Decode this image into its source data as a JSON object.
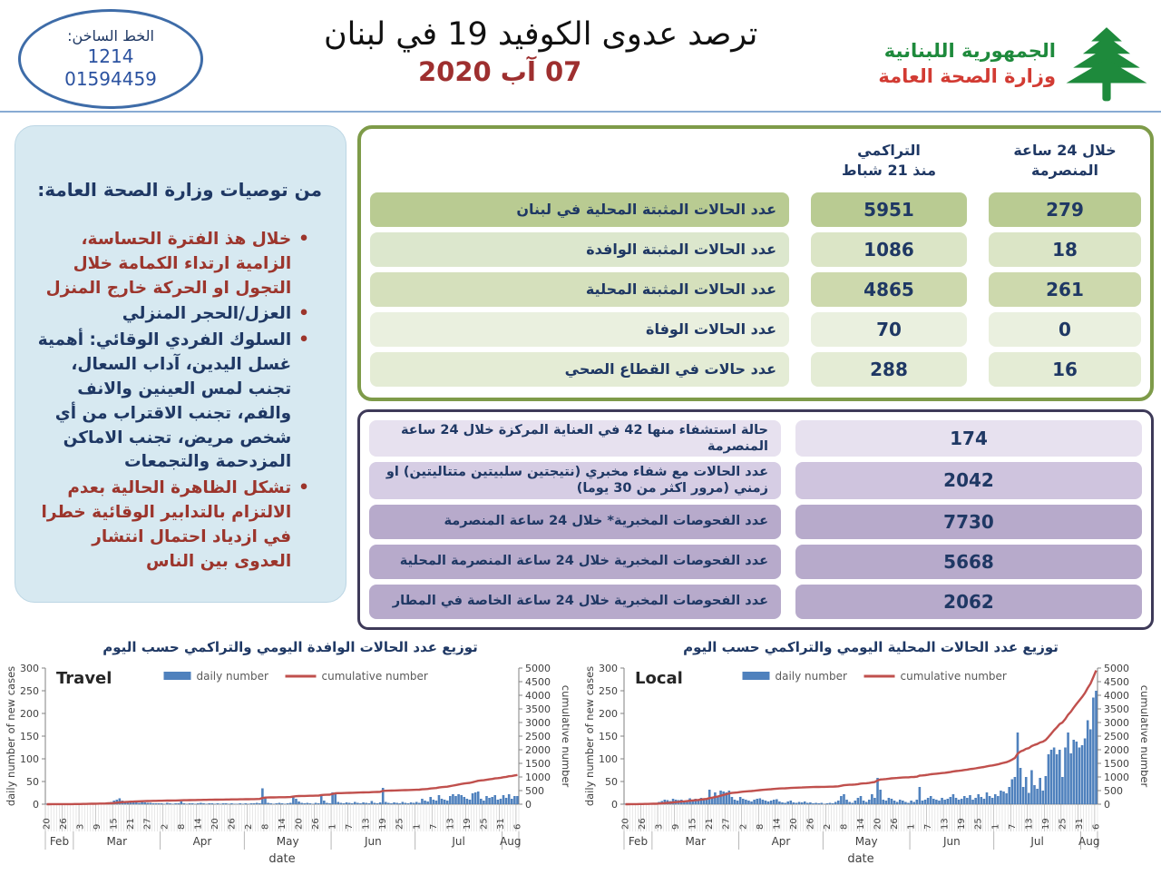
{
  "header": {
    "hotline": {
      "label": "الخط الساخن:",
      "number1": "1214",
      "number2": "01594459"
    },
    "title": "ترصد عدوى الكوفيد 19 في لبنان",
    "date": "07 آب 2020",
    "ministry": {
      "line1": "الجمهورية اللبنانية",
      "line2": "وزارة الصحة العامة"
    }
  },
  "recommendations": {
    "title": "من توصيات وزارة الصحة العامة:",
    "items": [
      {
        "text": "خلال هذ الفترة الحساسة، الزامية ارتداء الكمامة خلال التجول او الحركة خارج المنزل",
        "color": "#9C352C"
      },
      {
        "text": "العزل/الحجر المنزلي",
        "color": "#1F3864"
      },
      {
        "text": "السلوك الفردي الوقائي: أهمية غسل اليدين، آداب السعال، تجنب لمس العينين والانف والفم، تجنب الاقتراب من أي شخص مريض، تجنب الاماكن المزدحمة والتجمعات",
        "color": "#1F3864"
      },
      {
        "text": "تشكل الظاهرة الحالية بعدم الالتزام بالتدابير الوقائية خطرا في ازدياد احتمال انتشار العدوى بين الناس",
        "color": "#9C352C"
      }
    ]
  },
  "stats_table": {
    "col_cumulative": "التراكمي\nمنذ 21 شباط",
    "col_24h": "خلال 24 ساعة\nالمنصرمة",
    "rows": [
      {
        "label": "عدد الحالات المثبتة المحلية في لبنان",
        "cumulative": "5951",
        "last24h": "279",
        "label_bg": "#B9CB92",
        "value_bg": "#B9CB92"
      },
      {
        "label": "عدد الحالات المثبتة الوافدة",
        "cumulative": "1086",
        "last24h": "18",
        "label_bg": "#DCE7CD",
        "value_bg": "#DBE5C6"
      },
      {
        "label": "عدد الحالات المثبتة المحلية",
        "cumulative": "4865",
        "last24h": "261",
        "label_bg": "#D5E0BC",
        "value_bg": "#CDD9AD"
      },
      {
        "label": "عدد الحالات الوفاة",
        "cumulative": "70",
        "last24h": "0",
        "label_bg": "#EAF0DF",
        "value_bg": "#EAF0DF"
      },
      {
        "label": "عدد حالات في القطاع الصحي",
        "cumulative": "288",
        "last24h": "16",
        "label_bg": "#E4ECD5",
        "value_bg": "#E4ECD5"
      }
    ]
  },
  "lab_table": {
    "rows": [
      {
        "label": "حالة استشفاء منها 42 في العناية المركزة خلال 24 ساعة المنصرمة",
        "value": "174",
        "label_bg": "#E7E1EF",
        "value_bg": "#E7E1EF"
      },
      {
        "label": "عدد الحالات مع شفاء مخبري (نتيجتين سلبيتين متتاليتين) او زمني (مرور اكثر من 30 يوما)",
        "value": "2042",
        "label_bg": "#D6CDE4",
        "value_bg": "#CFC4DE"
      },
      {
        "label": "عدد الفحوصات المخبرية* خلال 24 ساعة المنصرمة",
        "value": "7730",
        "label_bg": "#B7AACB",
        "value_bg": "#B7AACB"
      },
      {
        "label": "عدد الفحوصات المخبرية خلال 24 ساعة المنصرمة المحلية",
        "value": "5668",
        "label_bg": "#B7AACB",
        "value_bg": "#B7AACB"
      },
      {
        "label": "عدد الفحوصات المخبرية خلال 24 ساعة الخاصة في المطار",
        "value": "2062",
        "label_bg": "#B7AACB",
        "value_bg": "#B7AACB"
      }
    ]
  },
  "charts_section": {
    "travel_title": "توزيع عدد الحالات الوافدة اليومي والتراكمي حسب اليوم",
    "local_title": "توزيع عدد الحالات المحلية اليومي والتراكمي حسب اليوم"
  },
  "chart_data": [
    {
      "type": "bar",
      "title": "Travel",
      "legend": [
        "daily number",
        "cumulative number"
      ],
      "xlabel": "date",
      "ylabel_left": "daily number of new cases",
      "ylabel_right": "cumulative number",
      "ylim_left": [
        0,
        300
      ],
      "ytick_left": 50,
      "ylim_right": [
        0,
        5000
      ],
      "ytick_right": 500,
      "bar_color": "#4F81BD",
      "line_color": "#C0504D",
      "line_is_cumulative_of_daily": true,
      "x_tick_labels": [
        "20",
        "26",
        "3",
        "9",
        "15",
        "21",
        "27",
        "2",
        "8",
        "14",
        "20",
        "26",
        "2",
        "8",
        "14",
        "20",
        "26",
        "1",
        "7",
        "13",
        "19",
        "25",
        "1",
        "7",
        "13",
        "19",
        "25",
        "31",
        "6"
      ],
      "months": [
        {
          "label": "Feb",
          "days": 10
        },
        {
          "label": "Mar",
          "days": 31
        },
        {
          "label": "Apr",
          "days": 30
        },
        {
          "label": "May",
          "days": 31
        },
        {
          "label": "Jun",
          "days": 30
        },
        {
          "label": "Jul",
          "days": 31
        },
        {
          "label": "Aug",
          "days": 6
        }
      ],
      "daily": [
        1,
        0,
        1,
        0,
        0,
        1,
        0,
        0,
        1,
        0,
        1,
        1,
        2,
        1,
        2,
        2,
        3,
        2,
        2,
        3,
        2,
        3,
        4,
        5,
        8,
        10,
        13,
        8,
        5,
        4,
        7,
        6,
        4,
        3,
        5,
        4,
        3,
        3,
        2,
        2,
        2,
        2,
        1,
        3,
        2,
        1,
        2,
        2,
        6,
        2,
        1,
        2,
        2,
        1,
        2,
        3,
        2,
        1,
        2,
        2,
        1,
        2,
        1,
        2,
        2,
        1,
        2,
        1,
        1,
        2,
        1,
        2,
        1,
        2,
        2,
        3,
        2,
        35,
        16,
        3,
        2,
        1,
        2,
        3,
        2,
        1,
        2,
        3,
        18,
        12,
        6,
        3,
        2,
        3,
        2,
        1,
        3,
        2,
        22,
        8,
        3,
        2,
        26,
        24,
        5,
        3,
        2,
        4,
        3,
        2,
        5,
        3,
        2,
        4,
        3,
        2,
        7,
        3,
        2,
        4,
        36,
        5,
        3,
        2,
        4,
        3,
        2,
        5,
        3,
        2,
        4,
        3,
        5,
        3,
        12,
        8,
        6,
        16,
        10,
        8,
        20,
        12,
        10,
        8,
        18,
        22,
        18,
        22,
        20,
        16,
        12,
        10,
        24,
        26,
        28,
        12,
        8,
        18,
        14,
        16,
        20,
        10,
        12,
        20,
        14,
        22,
        12,
        18,
        18
      ]
    },
    {
      "type": "bar",
      "title": "Local",
      "legend": [
        "daily number",
        "cumulative number"
      ],
      "xlabel": "date",
      "ylabel_left": "daily number of new cases",
      "ylabel_right": "cumulative number",
      "ylim_left": [
        0,
        300
      ],
      "ytick_left": 50,
      "ylim_right": [
        0,
        5000
      ],
      "ytick_right": 500,
      "bar_color": "#4F81BD",
      "line_color": "#C0504D",
      "line_is_cumulative_of_daily": true,
      "x_tick_labels": [
        "20",
        "26",
        "3",
        "9",
        "15",
        "21",
        "27",
        "2",
        "8",
        "14",
        "20",
        "26",
        "2",
        "8",
        "14",
        "20",
        "26",
        "1",
        "7",
        "13",
        "19",
        "25",
        "1",
        "7",
        "13",
        "19",
        "25",
        "31",
        "6"
      ],
      "months": [
        {
          "label": "Feb",
          "days": 10
        },
        {
          "label": "Mar",
          "days": 31
        },
        {
          "label": "Apr",
          "days": 30
        },
        {
          "label": "May",
          "days": 31
        },
        {
          "label": "Jun",
          "days": 30
        },
        {
          "label": "Jul",
          "days": 31
        },
        {
          "label": "Aug",
          "days": 6
        }
      ],
      "daily": [
        1,
        0,
        1,
        1,
        1,
        2,
        2,
        1,
        2,
        2,
        3,
        2,
        5,
        7,
        10,
        9,
        7,
        12,
        10,
        9,
        10,
        7,
        9,
        13,
        10,
        12,
        9,
        14,
        12,
        10,
        32,
        14,
        26,
        18,
        30,
        28,
        26,
        30,
        16,
        10,
        8,
        16,
        12,
        10,
        8,
        6,
        10,
        12,
        13,
        10,
        8,
        6,
        8,
        10,
        11,
        6,
        4,
        3,
        6,
        8,
        4,
        3,
        5,
        4,
        6,
        3,
        4,
        2,
        3,
        2,
        3,
        1,
        2,
        3,
        2,
        5,
        8,
        18,
        22,
        10,
        5,
        3,
        8,
        14,
        18,
        8,
        5,
        10,
        22,
        14,
        58,
        32,
        10,
        8,
        14,
        12,
        8,
        5,
        10,
        8,
        5,
        3,
        8,
        5,
        10,
        38,
        8,
        10,
        14,
        18,
        12,
        10,
        8,
        14,
        10,
        12,
        16,
        22,
        14,
        10,
        12,
        18,
        14,
        20,
        10,
        14,
        22,
        16,
        12,
        26,
        18,
        14,
        22,
        18,
        30,
        28,
        24,
        38,
        55,
        60,
        158,
        80,
        38,
        60,
        25,
        75,
        42,
        34,
        58,
        30,
        62,
        110,
        120,
        125,
        110,
        120,
        60,
        125,
        158,
        112,
        142,
        138,
        125,
        130,
        145,
        185,
        165,
        235,
        250
      ]
    }
  ]
}
